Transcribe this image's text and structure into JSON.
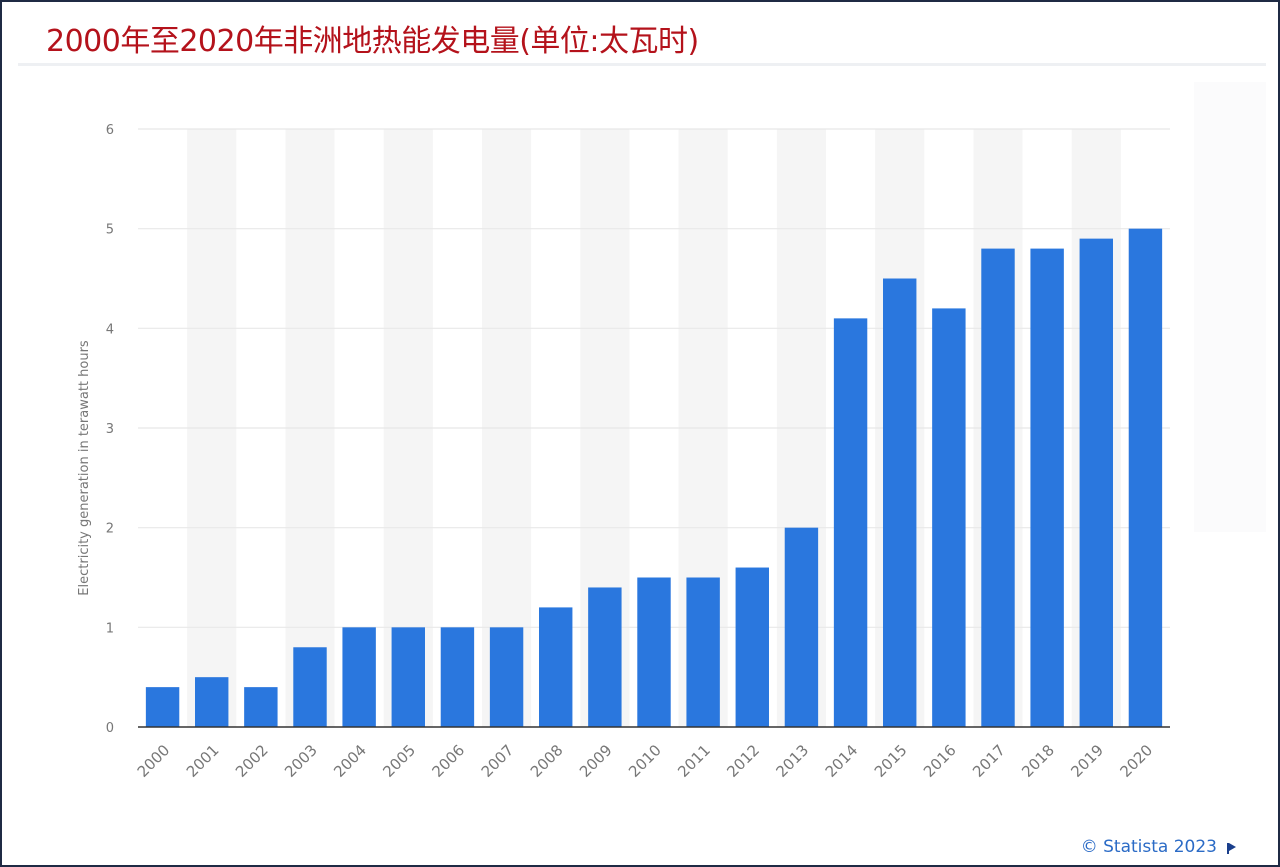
{
  "title": "2000年至2020年非洲地热能发电量(单位:太瓦时)",
  "credit": "© Statista 2023",
  "colors": {
    "bar": "#2a77de",
    "title": "#b4121b",
    "axis": "#777777",
    "grid": "#e8e8e8",
    "band": "#f5f5f5"
  },
  "chart_data": {
    "type": "bar",
    "title": "2000年至2020年非洲地热能发电量(单位:太瓦时)",
    "xlabel": "",
    "ylabel": "Electricity generation in terawatt hours",
    "ylim": [
      0,
      6
    ],
    "yticks": [
      0,
      1,
      2,
      3,
      4,
      5,
      6
    ],
    "grid": true,
    "categories": [
      "2000",
      "2001",
      "2002",
      "2003",
      "2004",
      "2005",
      "2006",
      "2007",
      "2008",
      "2009",
      "2010",
      "2011",
      "2012",
      "2013",
      "2014",
      "2015",
      "2016",
      "2017",
      "2018",
      "2019",
      "2020"
    ],
    "values": [
      0.4,
      0.5,
      0.4,
      0.8,
      1.0,
      1.0,
      1.0,
      1.0,
      1.2,
      1.4,
      1.5,
      1.5,
      1.6,
      2.0,
      4.1,
      4.5,
      4.2,
      4.8,
      4.8,
      4.9,
      5.0
    ]
  }
}
